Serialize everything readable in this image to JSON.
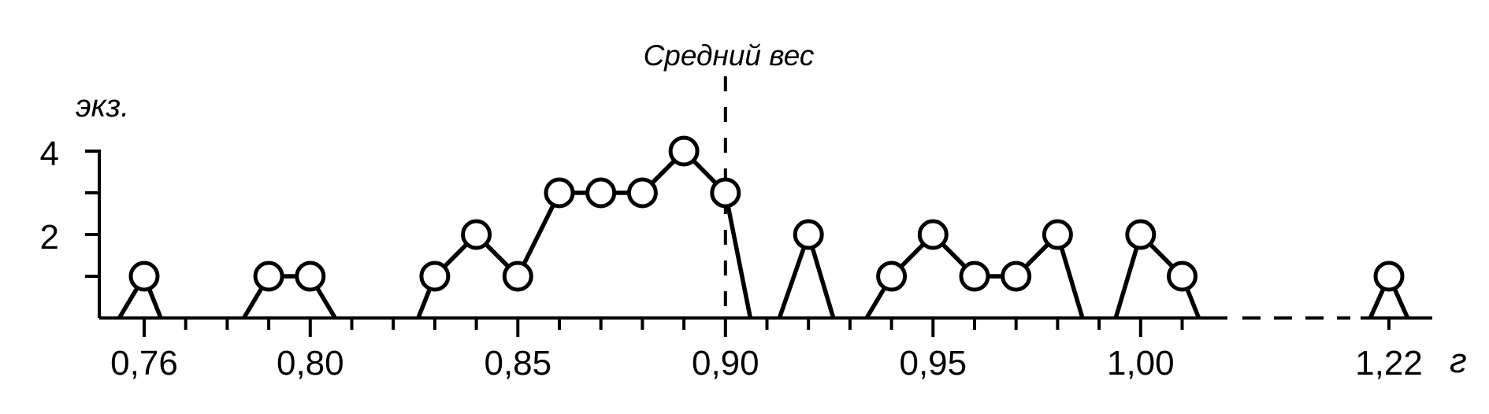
{
  "chart_data": {
    "type": "line",
    "subtype": "frequency-polygon",
    "ylabel": "экз.",
    "xlabel": "г",
    "annotation": {
      "text": "Средний вес",
      "x": 0.9,
      "style": "dashed-vertical-line"
    },
    "ylim": [
      0,
      4
    ],
    "xlim": [
      0.749,
      1.03
    ],
    "grid": false,
    "legend": false,
    "colors": {
      "stroke": "#000000",
      "background": "#ffffff",
      "marker_fill": "#ffffff"
    },
    "y_ticks": [
      {
        "value": 1,
        "label": ""
      },
      {
        "value": 2,
        "label": "2"
      },
      {
        "value": 3,
        "label": ""
      },
      {
        "value": 4,
        "label": "4"
      }
    ],
    "x_ticks": [
      {
        "value": 0.76,
        "label": "0,76",
        "major": true
      },
      {
        "value": 0.77,
        "label": "",
        "major": false
      },
      {
        "value": 0.78,
        "label": "",
        "major": false
      },
      {
        "value": 0.79,
        "label": "",
        "major": false
      },
      {
        "value": 0.8,
        "label": "0,80",
        "major": true
      },
      {
        "value": 0.81,
        "label": "",
        "major": false
      },
      {
        "value": 0.82,
        "label": "",
        "major": false
      },
      {
        "value": 0.83,
        "label": "",
        "major": false
      },
      {
        "value": 0.84,
        "label": "",
        "major": false
      },
      {
        "value": 0.85,
        "label": "0,85",
        "major": true
      },
      {
        "value": 0.86,
        "label": "",
        "major": false
      },
      {
        "value": 0.87,
        "label": "",
        "major": false
      },
      {
        "value": 0.88,
        "label": "",
        "major": false
      },
      {
        "value": 0.89,
        "label": "",
        "major": false
      },
      {
        "value": 0.9,
        "label": "0,90",
        "major": true
      },
      {
        "value": 0.91,
        "label": "",
        "major": false
      },
      {
        "value": 0.92,
        "label": "",
        "major": false
      },
      {
        "value": 0.93,
        "label": "",
        "major": false
      },
      {
        "value": 0.94,
        "label": "",
        "major": false
      },
      {
        "value": 0.95,
        "label": "0,95",
        "major": true
      },
      {
        "value": 0.96,
        "label": "",
        "major": false
      },
      {
        "value": 0.97,
        "label": "",
        "major": false
      },
      {
        "value": 0.98,
        "label": "",
        "major": false
      },
      {
        "value": 0.99,
        "label": "",
        "major": false
      },
      {
        "value": 1.0,
        "label": "1,00",
        "major": true
      },
      {
        "value": 1.01,
        "label": "",
        "major": false
      },
      {
        "value": 1.22,
        "label": "1,22",
        "major": false
      }
    ],
    "axis_break": {
      "between": [
        1.02,
        1.215
      ],
      "style": "dashed"
    },
    "segments": [
      [
        [
          0.754,
          0
        ],
        [
          0.76,
          1
        ],
        [
          0.764,
          0
        ]
      ],
      [
        [
          0.784,
          0
        ],
        [
          0.79,
          1
        ],
        [
          0.8,
          1
        ],
        [
          0.806,
          0
        ]
      ],
      [
        [
          0.826,
          0
        ],
        [
          0.83,
          1
        ],
        [
          0.84,
          2
        ],
        [
          0.85,
          1
        ],
        [
          0.86,
          3
        ],
        [
          0.87,
          3
        ],
        [
          0.88,
          3
        ],
        [
          0.89,
          4
        ],
        [
          0.9,
          3
        ],
        [
          0.906,
          0
        ]
      ],
      [
        [
          0.913,
          0
        ],
        [
          0.92,
          2
        ],
        [
          0.926,
          0
        ]
      ],
      [
        [
          0.934,
          0
        ],
        [
          0.94,
          1
        ],
        [
          0.95,
          2
        ],
        [
          0.96,
          1
        ],
        [
          0.97,
          1
        ],
        [
          0.98,
          2
        ],
        [
          0.986,
          0
        ]
      ],
      [
        [
          0.994,
          0
        ],
        [
          1.0,
          2
        ],
        [
          1.01,
          1
        ],
        [
          1.014,
          0
        ]
      ],
      [
        [
          1.2155,
          0
        ],
        [
          1.22,
          1
        ],
        [
          1.2245,
          0
        ]
      ]
    ],
    "frequencies": {
      "0,76": 1,
      "0,79": 1,
      "0,80": 1,
      "0,83": 1,
      "0,84": 2,
      "0,85": 1,
      "0,86": 3,
      "0,87": 3,
      "0,88": 3,
      "0,89": 4,
      "0,90": 3,
      "0,92": 2,
      "0,94": 1,
      "0,95": 2,
      "0,96": 1,
      "0,97": 1,
      "0,98": 2,
      "1,00": 2,
      "1,01": 1,
      "1,22": 1
    }
  }
}
